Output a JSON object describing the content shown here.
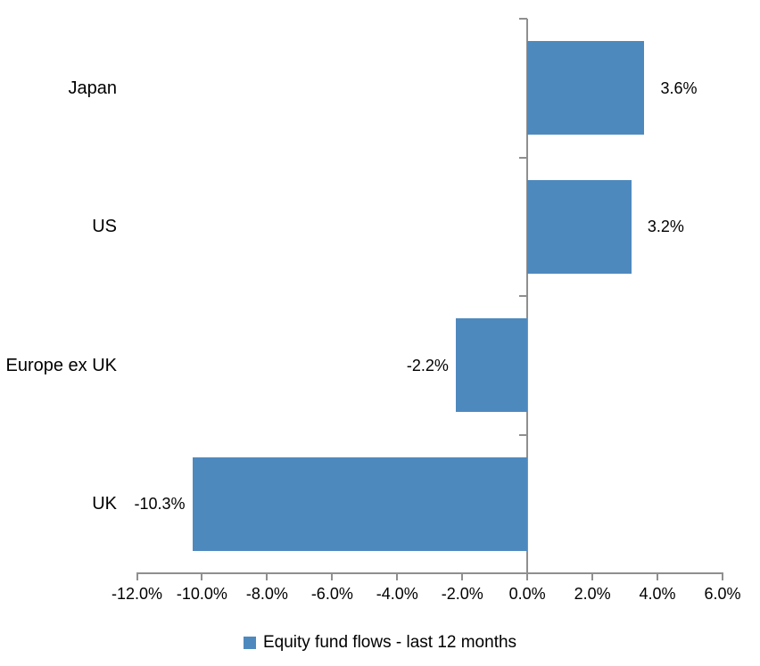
{
  "chart_data": {
    "type": "bar",
    "orientation": "horizontal",
    "title": "",
    "categories": [
      "Japan",
      "US",
      "Europe ex UK",
      "UK"
    ],
    "values": [
      3.6,
      3.2,
      -2.2,
      -10.3
    ],
    "data_labels": [
      "3.6%",
      "3.2%",
      "-2.2%",
      "-10.3%"
    ],
    "xlim": [
      -12,
      6
    ],
    "xticks": [
      -12,
      -10,
      -8,
      -6,
      -4,
      -2,
      0,
      2,
      4,
      6
    ],
    "xtick_labels": [
      "-12.0%",
      "-10.0%",
      "-8.0%",
      "-6.0%",
      "-4.0%",
      "-2.0%",
      "0.0%",
      "2.0%",
      "4.0%",
      "6.0%"
    ],
    "grid": false,
    "legend_position": "bottom",
    "legend_label": "Equity fund flows - last 12 months",
    "bar_color": "#4E89BE",
    "axis_color": "#8F8F8F",
    "text_color": "#000000"
  }
}
